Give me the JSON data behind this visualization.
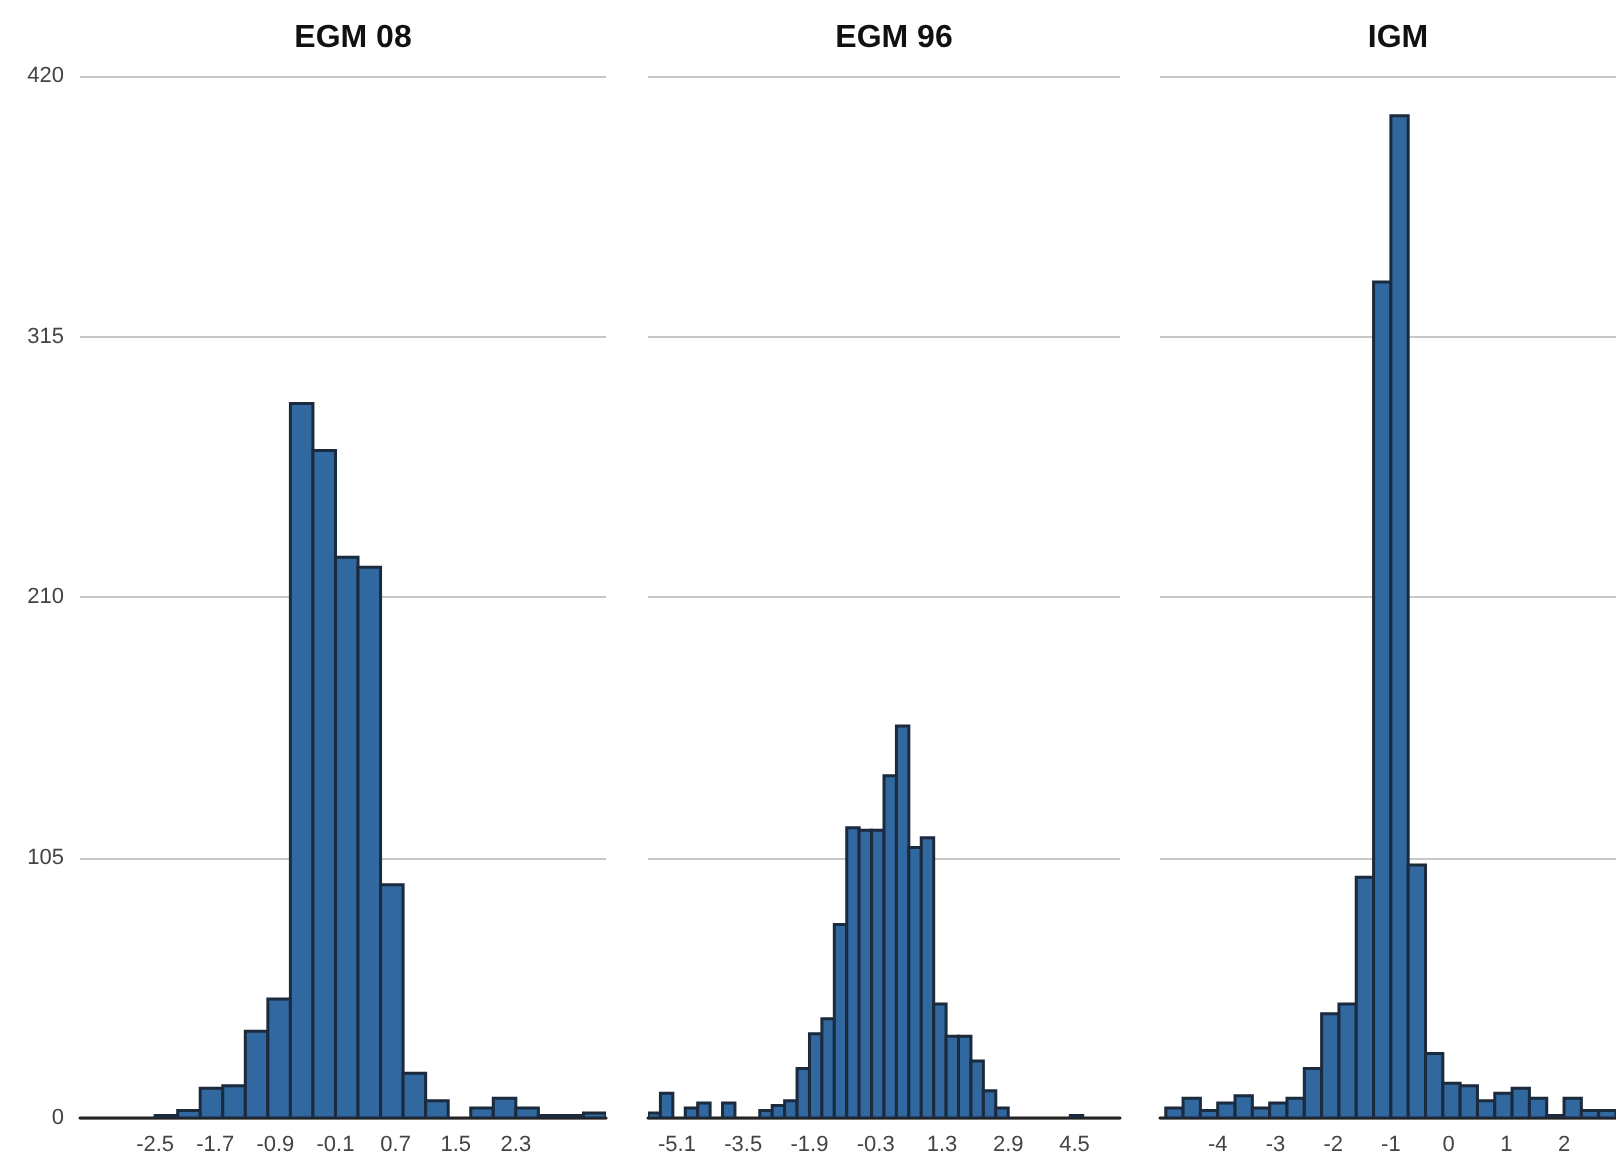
{
  "chart_data": [
    {
      "type": "histogram",
      "title": "EGM 08",
      "color": "#31689f",
      "bins": [
        -3.4,
        -3.1,
        -2.8,
        -2.5,
        -2.2,
        -1.9,
        -1.6,
        -1.3,
        -1.0,
        -0.7,
        -0.4,
        -0.1,
        0.2,
        0.5,
        0.8,
        1.1,
        1.4,
        1.7,
        2.0,
        2.3,
        2.6,
        2.9,
        3.2,
        3.5
      ],
      "values": [
        0,
        0,
        0,
        1,
        3,
        12,
        13,
        35,
        48,
        288,
        269,
        226,
        222,
        94,
        18,
        7,
        0,
        4,
        8,
        4,
        1,
        1,
        2
      ],
      "xlim": [
        -3.5,
        3.5
      ],
      "xticks": [
        -2.5,
        -1.7,
        -0.9,
        -0.1,
        0.7,
        1.5,
        2.3
      ],
      "ylim": [
        0,
        420
      ],
      "yticks": [
        0,
        105,
        210,
        315,
        420
      ],
      "grid": "y"
    },
    {
      "type": "histogram",
      "title": "EGM 96",
      "color": "#31689f",
      "bins": [
        -5.8,
        -5.5,
        -5.2,
        -4.9,
        -4.6,
        -4.3,
        -4.0,
        -3.7,
        -3.4,
        -3.1,
        -2.8,
        -2.5,
        -2.2,
        -1.9,
        -1.6,
        -1.3,
        -1.0,
        -0.7,
        -0.4,
        -0.1,
        0.2,
        0.5,
        0.8,
        1.1,
        1.4,
        1.7,
        2.0,
        2.3,
        2.6,
        2.9,
        3.2,
        3.5,
        3.8,
        4.1,
        4.4,
        4.7,
        5.0,
        5.3,
        5.6
      ],
      "values": [
        2,
        10,
        0,
        4,
        6,
        0,
        6,
        0,
        0,
        3,
        5,
        7,
        20,
        34,
        40,
        78,
        117,
        116,
        116,
        138,
        158,
        109,
        113,
        46,
        33,
        33,
        23,
        11,
        4,
        0,
        0,
        0,
        0,
        0,
        1,
        0,
        0,
        0
      ],
      "xlim": [
        -5.8,
        5.6
      ],
      "xticks": [
        -5.1,
        -3.5,
        -1.9,
        -0.3,
        1.3,
        2.9,
        4.5
      ],
      "ylim": [
        0,
        420
      ],
      "yticks": [
        0,
        105,
        210,
        315,
        420
      ],
      "grid": "y",
      "tick_labels": "x"
    },
    {
      "type": "histogram",
      "title": "IGM",
      "color": "#31689f",
      "bins": [
        -4.9,
        -4.6,
        -4.3,
        -4.0,
        -3.7,
        -3.4,
        -3.1,
        -2.8,
        -2.5,
        -2.2,
        -1.9,
        -1.6,
        -1.3,
        -1.0,
        -0.7,
        -0.4,
        -0.1,
        0.2,
        0.5,
        0.8,
        1.1,
        1.4,
        1.7,
        2.0,
        2.3,
        2.6,
        2.9
      ],
      "values": [
        4,
        8,
        3,
        6,
        9,
        4,
        6,
        8,
        20,
        42,
        46,
        97,
        337,
        404,
        102,
        26,
        14,
        13,
        7,
        10,
        12,
        8,
        1,
        8,
        3,
        3
      ],
      "xlim": [
        -5.0,
        2.9
      ],
      "xticks": [
        -4,
        -3,
        -2,
        -1,
        0,
        1,
        2
      ],
      "ylim": [
        0,
        420
      ],
      "yticks": [
        0,
        105,
        210,
        315,
        420
      ],
      "grid": "y",
      "tick_labels": "x"
    }
  ]
}
